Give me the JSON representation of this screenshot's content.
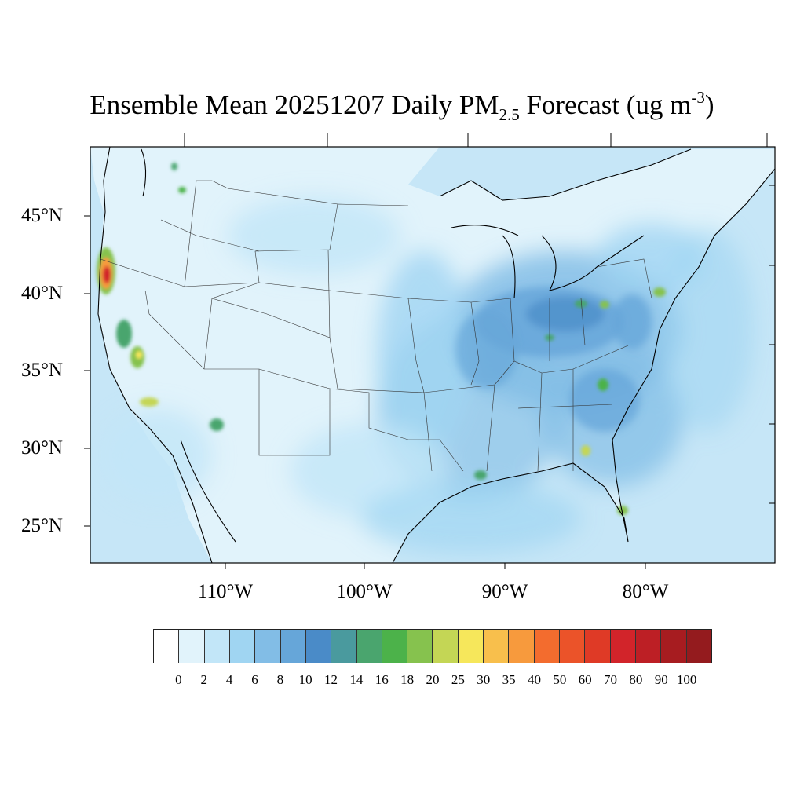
{
  "title": {
    "text_main": "Ensemble Mean 20251207 Daily PM",
    "text_sub": "2.5",
    "text_mid": " Forecast (ug m",
    "text_sup": "-3",
    "text_end": ")"
  },
  "map": {
    "projection": "lambert-conformal",
    "region": "CONUS",
    "lat_labels": [
      "45°N",
      "40°N",
      "35°N",
      "30°N",
      "25°N"
    ],
    "lon_labels": [
      "110°W",
      "100°W",
      "90°W",
      "80°W"
    ],
    "ocean_color": "#c6e6f7",
    "land_base_color": "#e1f3fb",
    "hotspots": [
      {
        "name": "N. California coast",
        "value": 100
      },
      {
        "name": "Central Valley",
        "value": 25
      },
      {
        "name": "Los Angeles",
        "value": 25
      },
      {
        "name": "Ohio Valley",
        "value": 16
      },
      {
        "name": "Atlanta",
        "value": 16
      },
      {
        "name": "New York",
        "value": 20
      }
    ]
  },
  "colorbar": {
    "colors": [
      "#ffffff",
      "#e1f3fb",
      "#c2e6f8",
      "#a0d5f2",
      "#82bde6",
      "#66a6d9",
      "#4a8bc8",
      "#4a9a9e",
      "#4aa56e",
      "#4cb24a",
      "#86c24e",
      "#c4d655",
      "#f6e75b",
      "#f8bf4c",
      "#f79a3d",
      "#f36c2e",
      "#eb5329",
      "#df3a26",
      "#d2242a",
      "#bd1f25",
      "#a71c20",
      "#941b1e"
    ],
    "labels": [
      "0",
      "2",
      "4",
      "6",
      "8",
      "10",
      "12",
      "14",
      "16",
      "18",
      "20",
      "25",
      "30",
      "35",
      "40",
      "50",
      "60",
      "70",
      "80",
      "90",
      "100"
    ]
  }
}
